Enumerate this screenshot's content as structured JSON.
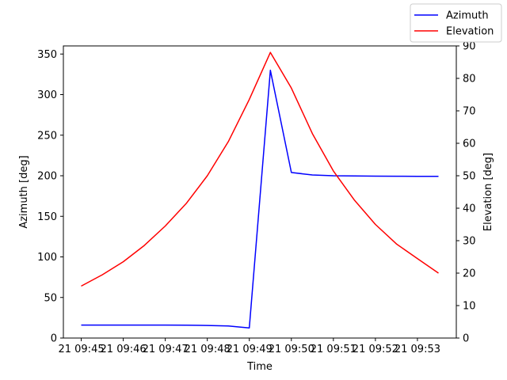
{
  "chart_data": {
    "type": "line",
    "xlabel": "Time",
    "x_ticks": [
      "21 09:45",
      "21 09:46",
      "21 09:47",
      "21 09:48",
      "21 09:49",
      "21 09:50",
      "21 09:51",
      "21 09:52",
      "21 09:53"
    ],
    "x_time": [
      "09:45:00",
      "09:45:30",
      "09:46:00",
      "09:46:30",
      "09:47:00",
      "09:47:30",
      "09:48:00",
      "09:48:30",
      "09:49:00",
      "09:49:30",
      "09:50:00",
      "09:50:30",
      "09:51:00",
      "09:51:30",
      "09:52:00",
      "09:52:30",
      "09:53:00",
      "09:53:30"
    ],
    "y_left": {
      "label": "Azimuth [deg]",
      "lim": [
        0,
        360
      ],
      "ticks": [
        0,
        50,
        100,
        150,
        200,
        250,
        300,
        350
      ]
    },
    "y_right": {
      "label": "Elevation [deg]",
      "lim": [
        0,
        90
      ],
      "ticks": [
        0,
        10,
        20,
        30,
        40,
        50,
        60,
        70,
        80,
        90
      ]
    },
    "series": [
      {
        "name": "Azimuth",
        "axis": "left",
        "color": "#0000ff",
        "values": [
          16,
          16,
          16,
          16,
          16,
          15.8,
          15.5,
          14.8,
          12.5,
          330,
          204,
          201,
          200,
          199.7,
          199.5,
          199.4,
          199.3,
          199.2
        ]
      },
      {
        "name": "Elevation",
        "axis": "right",
        "color": "#ff0000",
        "values": [
          16,
          19.5,
          23.5,
          28.5,
          34.5,
          41.5,
          50,
          60.5,
          73.5,
          88,
          77,
          63,
          51.5,
          42.5,
          35,
          29,
          24.5,
          20
        ]
      }
    ],
    "legend": {
      "position": "top-right"
    },
    "grid": false
  }
}
